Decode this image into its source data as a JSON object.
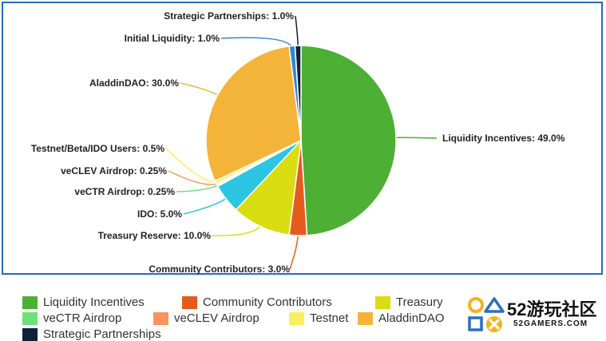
{
  "chart_data": {
    "type": "pie",
    "slices": [
      {
        "name": "Liquidity Incentives",
        "value": 49.0,
        "label": "Liquidity Incentives: 49.0%",
        "color": "#4daf33"
      },
      {
        "name": "Community Contributors",
        "value": 3.0,
        "label": "Community Contributors: 3.0%",
        "color": "#e45c1c"
      },
      {
        "name": "Treasury",
        "value": 10.0,
        "label": "Treasury Reserve: 10.0%",
        "color": "#dadd10"
      },
      {
        "name": "IDO",
        "value": 5.0,
        "label": "IDO: 5.0%",
        "color": "#2cc5e2"
      },
      {
        "name": "veCTR Airdrop",
        "value": 0.25,
        "label": "veCTR Airdrop: 0.25%",
        "color": "#6de07c"
      },
      {
        "name": "veCLEV Airdrop",
        "value": 0.25,
        "label": "veCLEV Airdrop: 0.25%",
        "color": "#f7955a"
      },
      {
        "name": "Testnet",
        "value": 0.5,
        "label": "Testnet/Beta/IDO Users: 0.5%",
        "color": "#f8ef5e"
      },
      {
        "name": "AladdinDAO",
        "value": 30.0,
        "label": "AladdinDAO: 30.0%",
        "color": "#f4b43a"
      },
      {
        "name": "Initial Liquidity",
        "value": 1.0,
        "label": "Initial Liquidity: 1.0%",
        "color": "#2f89d6"
      },
      {
        "name": "Strategic Partnerships",
        "value": 1.0,
        "label": "Strategic Partnerships: 1.0%",
        "color": "#0f2138"
      }
    ]
  },
  "legend": [
    {
      "label": "Liquidity Incentives",
      "color": "#4daf33"
    },
    {
      "label": "Community Contributors",
      "color": "#e45c1c"
    },
    {
      "label": "Treasury",
      "color": "#dadd10"
    },
    {
      "label": "veCTR Airdrop",
      "color": "#6de07c"
    },
    {
      "label": "veCLEV Airdrop",
      "color": "#f7955a"
    },
    {
      "label": "Testnet",
      "color": "#f8ef5e"
    },
    {
      "label": "AladdinDAO",
      "color": "#f4b43a"
    },
    {
      "label": "Strategic Partnerships",
      "color": "#0f2138"
    }
  ],
  "watermark": {
    "name": "52游玩社区",
    "url": "52GAMERS.COM",
    "logo_colors": {
      "yellow": "#f3b21f",
      "blue": "#2b6fc0"
    }
  }
}
